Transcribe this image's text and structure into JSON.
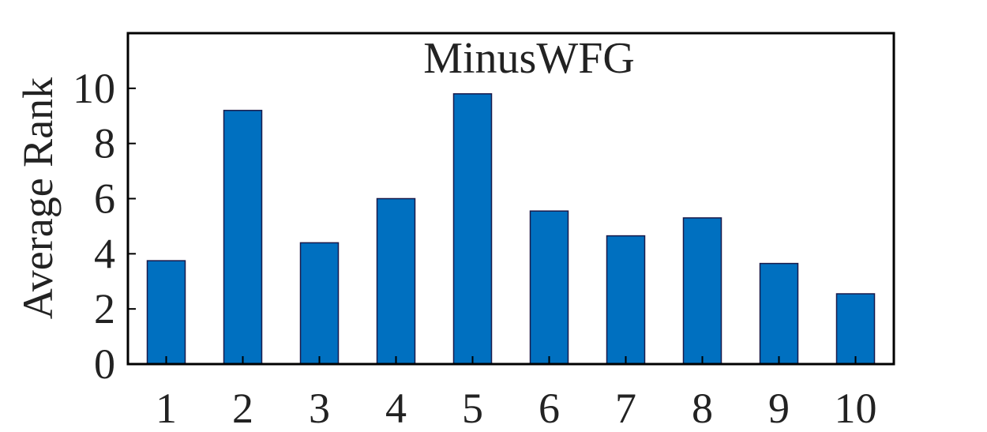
{
  "chart_data": {
    "type": "bar",
    "title": "MinusWFG",
    "xlabel": "",
    "ylabel": "Average Rank",
    "categories": [
      "1",
      "2",
      "3",
      "4",
      "5",
      "6",
      "7",
      "8",
      "9",
      "10"
    ],
    "values": [
      3.75,
      9.2,
      4.4,
      6.0,
      9.8,
      5.55,
      4.65,
      5.3,
      3.65,
      2.55
    ],
    "ylim": [
      0,
      12
    ],
    "yticks": [
      "0",
      "2",
      "4",
      "6",
      "8",
      "10"
    ],
    "bar_color": "#0070c0",
    "bar_edge_color": "#1a1a4a",
    "grid": false,
    "legend": "none"
  }
}
